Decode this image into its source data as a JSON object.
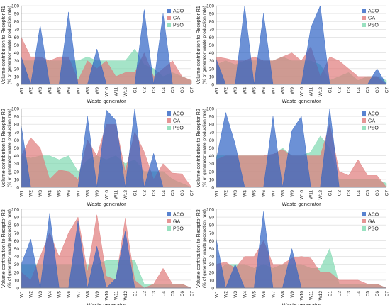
{
  "figure": {
    "categories": [
      "W1",
      "W2",
      "W3",
      "W4",
      "W5",
      "W6",
      "W7",
      "W8",
      "W9",
      "W10",
      "W11",
      "W12",
      "C1",
      "C2",
      "C3",
      "C4",
      "C5",
      "C6",
      "C7"
    ],
    "yticks": [
      0,
      10,
      20,
      30,
      40,
      50,
      60,
      70,
      80,
      90,
      100
    ],
    "ylim": [
      0,
      100
    ],
    "xlabel": "Waste generator",
    "ylabel_suffix": "(% of generator  waste production rate)",
    "legend": [
      "ACO",
      "GA",
      "PSO"
    ],
    "colors": {
      "ACO": "#2e63c4",
      "GA": "#e07b7b",
      "PSO": "#7fd9b0"
    }
  },
  "chart_data": [
    {
      "type": "area",
      "ylabel": "Volume contribution to Receptor R1",
      "series": [
        {
          "name": "ACO",
          "values": [
            35,
            0,
            75,
            0,
            0,
            92,
            0,
            0,
            45,
            0,
            0,
            0,
            0,
            95,
            0,
            90,
            0,
            0,
            0
          ]
        },
        {
          "name": "GA",
          "values": [
            60,
            35,
            35,
            30,
            35,
            35,
            5,
            30,
            20,
            30,
            10,
            15,
            15,
            40,
            10,
            20,
            30,
            10,
            5
          ]
        },
        {
          "name": "PSO",
          "values": [
            30,
            30,
            30,
            30,
            30,
            30,
            30,
            35,
            30,
            30,
            30,
            30,
            45,
            25,
            20,
            10,
            15,
            10,
            5
          ]
        }
      ]
    },
    {
      "type": "area",
      "ylabel": "Volume contribution to Receptor R1",
      "series": [
        {
          "name": "ACO",
          "values": [
            32,
            0,
            0,
            103,
            0,
            90,
            0,
            0,
            0,
            0,
            72,
            107,
            0,
            0,
            0,
            0,
            0,
            20,
            0
          ]
        },
        {
          "name": "GA",
          "values": [
            35,
            33,
            30,
            30,
            35,
            30,
            30,
            35,
            40,
            30,
            48,
            10,
            35,
            30,
            20,
            10,
            10,
            10,
            0
          ]
        },
        {
          "name": "PSO",
          "values": [
            25,
            30,
            25,
            30,
            30,
            30,
            30,
            35,
            30,
            30,
            30,
            25,
            5,
            10,
            15,
            5,
            10,
            10,
            5
          ]
        }
      ]
    },
    {
      "type": "area",
      "ylabel": "Volume contribution to Receptor R2",
      "series": [
        {
          "name": "ACO",
          "values": [
            78,
            0,
            0,
            0,
            0,
            0,
            0,
            90,
            0,
            98,
            85,
            0,
            100,
            0,
            43,
            0,
            0,
            0,
            0
          ]
        },
        {
          "name": "GA",
          "values": [
            40,
            63,
            50,
            10,
            22,
            20,
            10,
            60,
            40,
            80,
            80,
            20,
            70,
            45,
            10,
            30,
            18,
            17,
            0
          ]
        },
        {
          "name": "PSO",
          "values": [
            40,
            37,
            40,
            40,
            35,
            40,
            20,
            35,
            40,
            35,
            40,
            30,
            35,
            20,
            20,
            20,
            10,
            5,
            0
          ]
        }
      ]
    },
    {
      "type": "area",
      "ylabel": "Volume contribution to Receptor R2",
      "series": [
        {
          "name": "ACO",
          "values": [
            35,
            95,
            55,
            0,
            0,
            0,
            90,
            0,
            72,
            90,
            0,
            0,
            100,
            0,
            0,
            0,
            0,
            0,
            0
          ]
        },
        {
          "name": "GA",
          "values": [
            35,
            40,
            40,
            40,
            40,
            40,
            42,
            48,
            40,
            40,
            40,
            40,
            80,
            20,
            15,
            35,
            15,
            15,
            0
          ]
        },
        {
          "name": "PSO",
          "values": [
            40,
            40,
            40,
            40,
            40,
            40,
            40,
            50,
            40,
            40,
            45,
            65,
            50,
            10,
            10,
            10,
            10,
            10,
            5
          ]
        }
      ]
    },
    {
      "type": "area",
      "ylabel": "Volume contribution to Receptor R3",
      "series": [
        {
          "name": "ACO",
          "values": [
            30,
            62,
            0,
            95,
            0,
            0,
            85,
            0,
            53,
            0,
            12,
            72,
            0,
            0,
            0,
            0,
            0,
            0,
            0
          ]
        },
        {
          "name": "GA",
          "values": [
            20,
            10,
            40,
            70,
            40,
            70,
            90,
            20,
            93,
            15,
            10,
            88,
            10,
            0,
            5,
            25,
            5,
            5,
            0
          ]
        },
        {
          "name": "PSO",
          "values": [
            30,
            30,
            30,
            30,
            30,
            30,
            30,
            30,
            30,
            35,
            35,
            35,
            35,
            5,
            5,
            5,
            5,
            5,
            0
          ]
        }
      ]
    },
    {
      "type": "area",
      "ylabel": "Volume contribution to Receptor R3",
      "series": [
        {
          "name": "ACO",
          "values": [
            62,
            0,
            30,
            0,
            0,
            97,
            0,
            0,
            50,
            0,
            0,
            0,
            0,
            0,
            0,
            0,
            0,
            0,
            0
          ]
        },
        {
          "name": "GA",
          "values": [
            30,
            33,
            25,
            40,
            40,
            60,
            30,
            30,
            38,
            40,
            38,
            20,
            20,
            10,
            10,
            10,
            5,
            5,
            0
          ]
        },
        {
          "name": "PSO",
          "values": [
            20,
            30,
            30,
            30,
            25,
            30,
            25,
            30,
            30,
            30,
            25,
            25,
            50,
            5,
            5,
            5,
            5,
            5,
            0
          ]
        }
      ]
    }
  ]
}
